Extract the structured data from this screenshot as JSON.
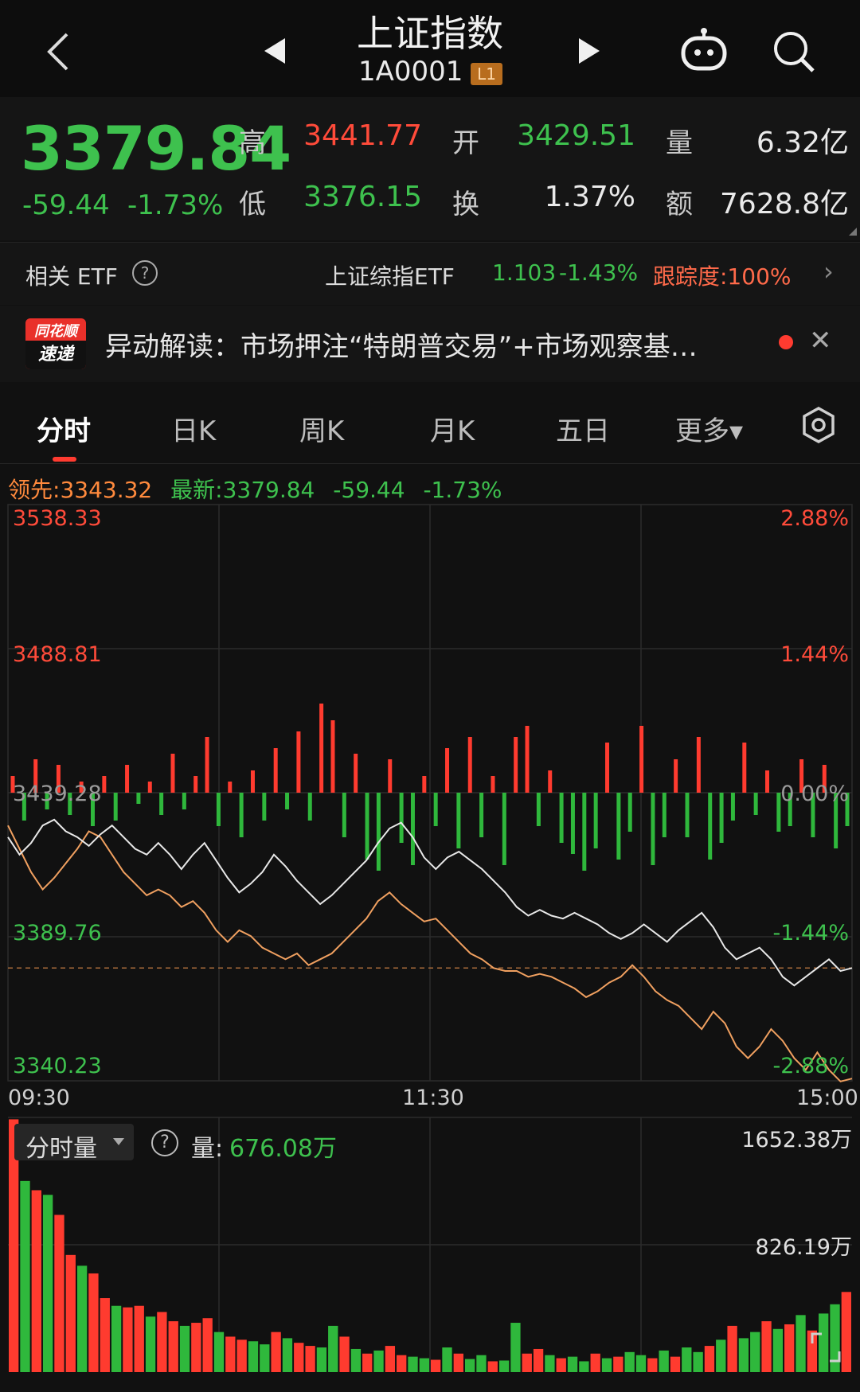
{
  "header": {
    "title": "上证指数",
    "code": "1A0001",
    "level_badge": "L1",
    "icons": [
      "back-icon",
      "prev-arrow-icon",
      "next-arrow-icon",
      "robot-assistant-icon",
      "search-icon"
    ]
  },
  "quote": {
    "price": "3379.84",
    "change": "-59.44",
    "change_pct": "-1.73%",
    "high_label": "高",
    "high": "3441.77",
    "low_label": "低",
    "low": "3376.15",
    "open_label": "开",
    "open": "3429.51",
    "turnover_label": "换",
    "turnover": "1.37%",
    "volume_label": "量",
    "volume": "6.32亿",
    "amount_label": "额",
    "amount": "7628.8亿"
  },
  "etf": {
    "label": "相关 ETF",
    "help": "?",
    "name": "上证综指ETF",
    "price": "1.103",
    "pct": "-1.43%",
    "tracking": "跟踪度:100%",
    "chevron": "›"
  },
  "news": {
    "logo_top": "同花顺",
    "logo_bottom": "速递",
    "text": "异动解读：市场押注“特朗普交易”+市场观察基…",
    "close": "✕"
  },
  "tabs": [
    {
      "label": "分时",
      "active": true
    },
    {
      "label": "日K"
    },
    {
      "label": "周K"
    },
    {
      "label": "月K"
    },
    {
      "label": "五日"
    },
    {
      "label": "更多▾"
    }
  ],
  "legend": {
    "lead_label": "领先:",
    "lead_value": "3343.32",
    "latest_label": "最新:",
    "latest_value": "3379.84",
    "latest_change": "-59.44",
    "latest_pct": "-1.73%"
  },
  "chart_data": {
    "type": "line",
    "y_labels_left": [
      "3538.33",
      "3488.81",
      "3439.28",
      "3389.76",
      "3340.23"
    ],
    "y_labels_right": [
      "2.88%",
      "1.44%",
      "0.00%",
      "-1.44%",
      "-2.88%"
    ],
    "ylim": [
      3340.23,
      3538.33
    ],
    "prev_close": 3439.28,
    "x_labels": [
      "09:30",
      "11:30",
      "15:00"
    ],
    "colors": {
      "price_line": "#e8e8e8",
      "lead_line": "#f0a060",
      "up_bar": "#ff3b2f",
      "down_bar": "#2fb83c"
    },
    "price_series": [
      3424,
      3418,
      3422,
      3428,
      3430,
      3426,
      3424,
      3421,
      3425,
      3428,
      3424,
      3420,
      3418,
      3422,
      3418,
      3413,
      3418,
      3422,
      3416,
      3410,
      3405,
      3408,
      3412,
      3418,
      3414,
      3409,
      3405,
      3401,
      3404,
      3408,
      3412,
      3416,
      3422,
      3427,
      3429,
      3424,
      3417,
      3413,
      3417,
      3419,
      3416,
      3413,
      3409,
      3405,
      3400,
      3397,
      3399,
      3397,
      3396,
      3398,
      3396,
      3394,
      3391,
      3389,
      3391,
      3394,
      3391,
      3388,
      3392,
      3395,
      3398,
      3393,
      3386,
      3382,
      3384,
      3386,
      3382,
      3376,
      3373,
      3376,
      3379,
      3382,
      3378,
      3379
    ],
    "lead_series": [
      3428,
      3420,
      3412,
      3406,
      3410,
      3415,
      3420,
      3426,
      3424,
      3418,
      3412,
      3408,
      3404,
      3406,
      3404,
      3400,
      3402,
      3398,
      3392,
      3388,
      3392,
      3390,
      3386,
      3384,
      3382,
      3384,
      3380,
      3382,
      3384,
      3388,
      3392,
      3396,
      3402,
      3405,
      3401,
      3398,
      3395,
      3396,
      3392,
      3388,
      3384,
      3382,
      3379,
      3378,
      3378,
      3376,
      3377,
      3376,
      3374,
      3372,
      3369,
      3371,
      3374,
      3376,
      3380,
      3376,
      3371,
      3368,
      3366,
      3362,
      3358,
      3364,
      3360,
      3352,
      3348,
      3352,
      3358,
      3354,
      3348,
      3344,
      3350,
      3344,
      3340,
      3341
    ],
    "bar_series": [
      0.3,
      -0.5,
      0.6,
      -0.3,
      0.5,
      -0.4,
      0.2,
      -0.6,
      0.3,
      -0.5,
      0.5,
      -0.2,
      0.2,
      -0.4,
      0.7,
      -0.3,
      0.3,
      1.0,
      -0.6,
      0.2,
      -0.8,
      0.4,
      -0.5,
      0.8,
      -0.3,
      1.1,
      -0.5,
      1.6,
      1.3,
      -0.8,
      0.7,
      -1.2,
      -1.4,
      0.6,
      -0.9,
      -1.3,
      0.3,
      -0.6,
      0.8,
      -1.0,
      1.0,
      -0.8,
      0.3,
      -1.3,
      1.0,
      1.2,
      -0.6,
      0.4,
      -0.9,
      -1.1,
      -1.4,
      -1.0,
      0.9,
      -1.2,
      -0.7,
      1.2,
      -1.3,
      -0.8,
      0.6,
      -0.8,
      1.0,
      -1.2,
      -0.9,
      -0.5,
      0.9,
      -0.4,
      0.4,
      -0.7,
      -0.6,
      0.6,
      -0.8,
      0.5,
      -1.0,
      -0.6
    ]
  },
  "volume": {
    "dropdown_label": "分时量",
    "help": "?",
    "label": "量:",
    "value": "676.08万",
    "max_label": "1652.38万",
    "mid_label": "826.19万",
    "max_value": 1652.38,
    "bars": [
      1640,
      1240,
      1180,
      1150,
      1020,
      760,
      690,
      640,
      480,
      430,
      420,
      430,
      360,
      390,
      330,
      300,
      320,
      350,
      260,
      230,
      210,
      200,
      180,
      260,
      220,
      190,
      170,
      160,
      300,
      230,
      150,
      120,
      140,
      170,
      110,
      100,
      90,
      80,
      160,
      120,
      85,
      110,
      70,
      75,
      320,
      120,
      150,
      110,
      90,
      100,
      70,
      120,
      90,
      100,
      130,
      110,
      90,
      140,
      100,
      160,
      130,
      170,
      210,
      300,
      220,
      260,
      330,
      280,
      310,
      370,
      270,
      380,
      440,
      520
    ],
    "bar_up": [
      1,
      0,
      1,
      0,
      1,
      1,
      0,
      1,
      1,
      0,
      1,
      1,
      0,
      1,
      1,
      0,
      1,
      1,
      0,
      1,
      1,
      0,
      0,
      1,
      0,
      1,
      1,
      0,
      0,
      1,
      0,
      1,
      0,
      1,
      1,
      0,
      0,
      1,
      0,
      1,
      0,
      0,
      1,
      0,
      0,
      1,
      1,
      0,
      1,
      0,
      0,
      1,
      0,
      1,
      0,
      0,
      1,
      0,
      1,
      0,
      0,
      1,
      0,
      1,
      0,
      0,
      1,
      0,
      1,
      0,
      1,
      0,
      0,
      1
    ]
  }
}
